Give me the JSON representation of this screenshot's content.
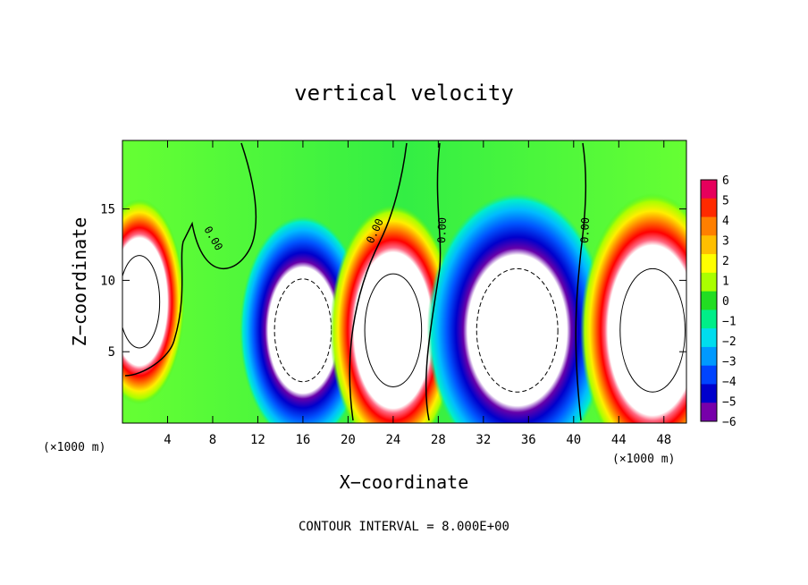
{
  "chart_data": {
    "type": "heatmap",
    "title": "vertical velocity",
    "xlabel": "X−coordinate",
    "ylabel": "Z−coordinate",
    "x_unit_left": "(×1000 m)",
    "x_unit_right": "(×1000 m)",
    "footer": "CONTOUR INTERVAL = 8.000E+00",
    "xlim": [
      0,
      50
    ],
    "ylim": [
      0,
      19.8
    ],
    "x_ticks": [
      "4",
      "8",
      "12",
      "16",
      "20",
      "24",
      "28",
      "32",
      "36",
      "40",
      "44",
      "48"
    ],
    "y_ticks": [
      "5",
      "10",
      "15"
    ],
    "colorbar": {
      "range": [
        -6,
        6
      ],
      "labels": [
        "6",
        "5",
        "4",
        "3",
        "2",
        "1",
        "0",
        "−1",
        "−2",
        "−3",
        "−4",
        "−5",
        "−6"
      ],
      "colors": [
        "#e6005c",
        "#ff2a00",
        "#ff7f00",
        "#ffbf00",
        "#ffff00",
        "#aaff00",
        "#22dd22",
        "#00ee88",
        "#00ddee",
        "#0099ff",
        "#0044ff",
        "#0000cc",
        "#7700aa"
      ],
      "over_color": "#ffffff",
      "under_color": "#ffffff"
    },
    "contour_labels": [
      "0.00",
      "0.00",
      "0.00",
      "0.00"
    ],
    "features": [
      {
        "kind": "updraft",
        "x": 1.5,
        "z": 8.5,
        "rx": 2.5,
        "rz": 4.5,
        "value": 8
      },
      {
        "kind": "downdraft",
        "x": 16,
        "z": 6.5,
        "rx": 3.5,
        "rz": 5,
        "value": -8
      },
      {
        "kind": "updraft",
        "x": 24,
        "z": 6.5,
        "rx": 3.5,
        "rz": 5.5,
        "value": 8
      },
      {
        "kind": "downdraft",
        "x": 35,
        "z": 6.5,
        "rx": 5,
        "rz": 6,
        "value": -8
      },
      {
        "kind": "updraft",
        "x": 47,
        "z": 6.5,
        "rx": 4,
        "rz": 6,
        "value": 8
      }
    ]
  }
}
